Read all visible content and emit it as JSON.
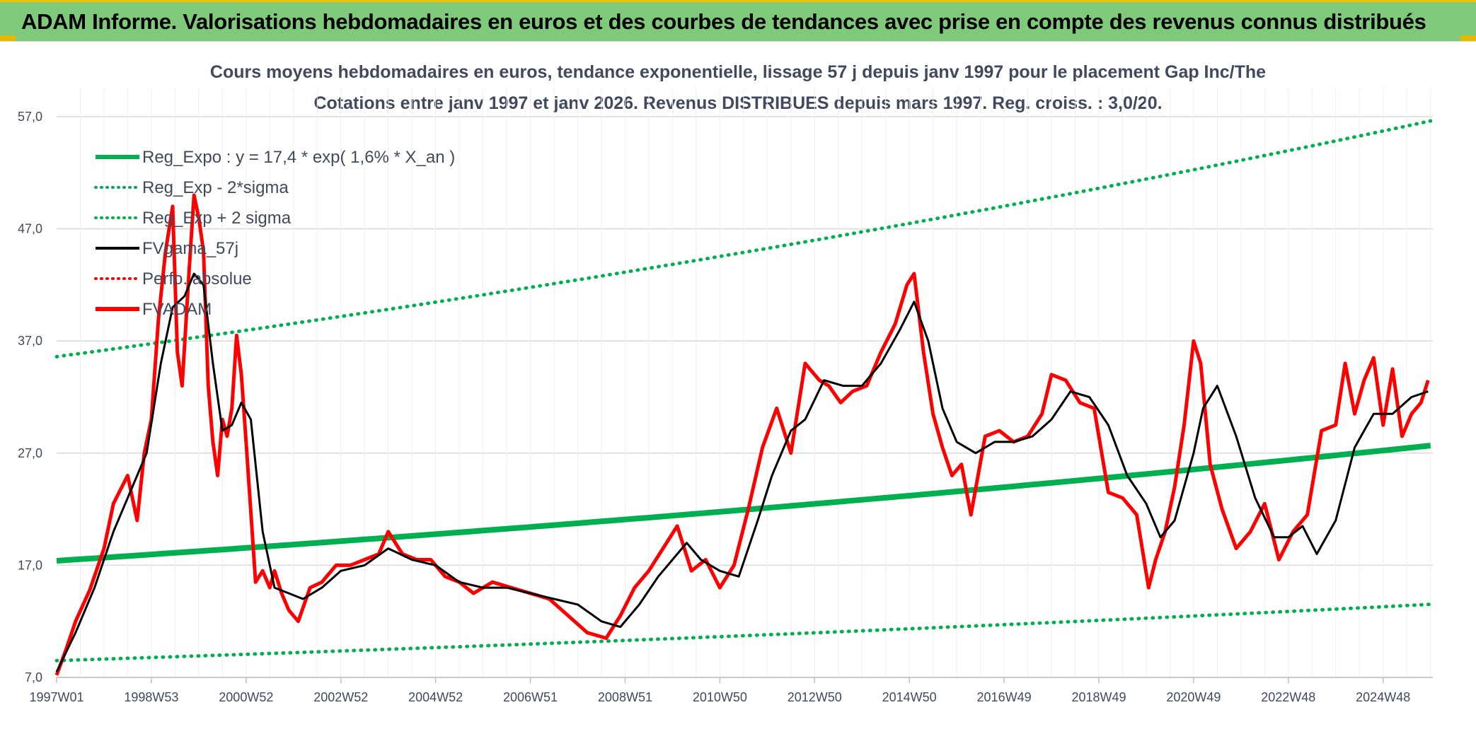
{
  "banner": {
    "title": "ADAM Informe. Valorisations hebdomadaires en euros et des courbes de tendances avec prise en compte des revenus connus distribués"
  },
  "colors": {
    "banner_bg": "#7fc97a",
    "trend": "#00b050",
    "smooth": "#000000",
    "price": "#ff0000",
    "grid": "#d9d9d9",
    "text": "#404a5c"
  },
  "chart_data": {
    "type": "line",
    "title": "Cours moyens hebdomadaires en euros, tendance exponentielle, lissage 57 j depuis janv 1997 pour le placement Gap Inc/The",
    "subtitle": "Cotations entre janv 1997 et janv 2026. Revenus DISTRIBUES depuis mars 1997. Reg. croiss. : 3,0/20.",
    "xlabel": "",
    "ylabel": "",
    "ylim": [
      7,
      57
    ],
    "x_range": [
      1997.0,
      2026.05
    ],
    "y_ticks": [
      "7,0",
      "17,0",
      "27,0",
      "37,0",
      "47,0",
      "57,0"
    ],
    "y_tick_values": [
      7,
      17,
      27,
      37,
      47,
      57
    ],
    "x_ticks": [
      "1997W01",
      "1998W53",
      "2000W52",
      "2002W52",
      "2004W52",
      "2006W51",
      "2008W51",
      "2010W50",
      "2012W50",
      "2014W50",
      "2016W49",
      "2018W49",
      "2020W49",
      "2022W48",
      "2024W48"
    ],
    "x_tick_values": [
      1997.0,
      1999.0,
      2001.0,
      2003.0,
      2005.0,
      2007.0,
      2009.0,
      2011.0,
      2013.0,
      2015.0,
      2017.0,
      2019.0,
      2021.0,
      2023.0,
      2025.0
    ],
    "grid": true,
    "legend_position": "top-left",
    "legend": [
      {
        "label": "Reg_Expo : y = 17,4 * exp( 1,6% *  X_an )",
        "style": "solid-thick",
        "color": "#00b050"
      },
      {
        "label": "Reg_Exp - 2*sigma",
        "style": "dotted",
        "color": "#00b050"
      },
      {
        "label": "Reg_Exp + 2 sigma",
        "style": "dotted",
        "color": "#00b050"
      },
      {
        "label": "FVgama_57j",
        "style": "solid",
        "color": "#000000"
      },
      {
        "label": "Perfo. absolue",
        "style": "dotted",
        "color": "#ff0000"
      },
      {
        "label": "FVADAM",
        "style": "solid-thick",
        "color": "#ff0000"
      }
    ],
    "regression": {
      "a": 17.4,
      "rate": 0.016,
      "start_year": 1997.0
    },
    "series": [
      {
        "name": "Reg_Expo",
        "x": [
          1997.0,
          2026.05
        ],
        "y": [
          17.4,
          27.7
        ]
      },
      {
        "name": "Reg_Exp + 2 sigma",
        "x": [
          1997.0,
          2026.05
        ],
        "y": [
          35.6,
          57.0
        ]
      },
      {
        "name": "Reg_Exp - 2*sigma",
        "x": [
          1997.0,
          2026.05
        ],
        "y": [
          8.5,
          13.5
        ]
      },
      {
        "name": "FVADAM",
        "x": [
          1997.0,
          1997.2,
          1997.4,
          1997.7,
          1998.0,
          1998.2,
          1998.5,
          1998.7,
          1998.85,
          1999.0,
          1999.15,
          1999.3,
          1999.45,
          1999.55,
          1999.65,
          1999.8,
          1999.9,
          2000.0,
          2000.1,
          2000.2,
          2000.3,
          2000.4,
          2000.5,
          2000.6,
          2000.7,
          2000.8,
          2000.9,
          2001.0,
          2001.2,
          2001.35,
          2001.5,
          2001.6,
          2001.75,
          2001.9,
          2002.1,
          2002.35,
          2002.6,
          2002.9,
          2003.2,
          2003.5,
          2003.8,
          2004.0,
          2004.3,
          2004.6,
          2004.9,
          2005.2,
          2005.5,
          2005.8,
          2006.2,
          2006.6,
          2007.0,
          2007.4,
          2007.8,
          2008.2,
          2008.6,
          2008.9,
          2009.2,
          2009.5,
          2009.8,
          2010.1,
          2010.4,
          2010.7,
          2011.0,
          2011.3,
          2011.6,
          2011.9,
          2012.2,
          2012.5,
          2012.8,
          2013.1,
          2013.3,
          2013.55,
          2013.8,
          2014.1,
          2014.4,
          2014.7,
          2014.95,
          2015.1,
          2015.3,
          2015.5,
          2015.7,
          2015.9,
          2016.1,
          2016.3,
          2016.6,
          2016.9,
          2017.2,
          2017.5,
          2017.8,
          2018.0,
          2018.3,
          2018.6,
          2018.9,
          2019.2,
          2019.5,
          2019.8,
          2020.05,
          2020.2,
          2020.4,
          2020.6,
          2020.8,
          2021.0,
          2021.15,
          2021.35,
          2021.6,
          2021.9,
          2022.2,
          2022.5,
          2022.8,
          2023.1,
          2023.4,
          2023.7,
          2024.0,
          2024.2,
          2024.4,
          2024.6,
          2024.8,
          2025.0,
          2025.2,
          2025.4,
          2025.6,
          2025.8,
          2025.95
        ],
        "y": [
          7.2,
          9.5,
          12.0,
          14.8,
          18.5,
          22.5,
          25.0,
          21.0,
          27.0,
          30.0,
          39.0,
          45.0,
          49.0,
          36.0,
          33.0,
          43.5,
          50.0,
          48.0,
          45.0,
          33.0,
          28.0,
          25.0,
          30.0,
          28.5,
          31.0,
          37.5,
          34.0,
          28.0,
          15.5,
          16.5,
          15.0,
          16.5,
          14.5,
          13.0,
          12.0,
          15.0,
          15.5,
          17.0,
          17.0,
          17.5,
          18.0,
          20.0,
          18.0,
          17.5,
          17.5,
          16.0,
          15.5,
          14.5,
          15.5,
          15.0,
          14.5,
          14.0,
          12.5,
          11.0,
          10.5,
          12.5,
          15.0,
          16.5,
          18.5,
          20.5,
          16.5,
          17.5,
          15.0,
          17.0,
          22.0,
          27.5,
          31.0,
          27.0,
          35.0,
          33.5,
          33.0,
          31.5,
          32.5,
          33.0,
          36.0,
          38.5,
          42.0,
          43.0,
          36.0,
          30.5,
          27.5,
          25.0,
          26.0,
          21.5,
          28.5,
          29.0,
          28.0,
          28.5,
          30.5,
          34.0,
          33.5,
          31.5,
          31.0,
          23.5,
          23.0,
          21.5,
          15.0,
          17.5,
          20.0,
          24.0,
          29.5,
          37.0,
          35.0,
          26.0,
          22.0,
          18.5,
          20.0,
          22.5,
          17.5,
          20.0,
          21.5,
          29.0,
          29.5,
          35.0,
          30.5,
          33.5,
          35.5,
          29.5,
          34.5,
          28.5,
          30.5,
          31.5,
          33.5
        ]
      },
      {
        "name": "FVgama_57j",
        "x": [
          1997.0,
          1997.4,
          1997.8,
          1998.2,
          1998.6,
          1998.9,
          1999.2,
          1999.45,
          1999.7,
          1999.9,
          2000.1,
          2000.3,
          2000.5,
          2000.7,
          2000.9,
          2001.1,
          2001.35,
          2001.6,
          2001.9,
          2002.2,
          2002.6,
          2003.0,
          2003.5,
          2004.0,
          2004.5,
          2005.0,
          2005.5,
          2006.0,
          2006.5,
          2007.0,
          2007.5,
          2008.0,
          2008.5,
          2008.9,
          2009.3,
          2009.7,
          2010.0,
          2010.3,
          2010.6,
          2011.0,
          2011.4,
          2011.8,
          2012.1,
          2012.5,
          2012.8,
          2013.2,
          2013.6,
          2014.0,
          2014.4,
          2014.8,
          2015.1,
          2015.4,
          2015.7,
          2016.0,
          2016.4,
          2016.8,
          2017.2,
          2017.6,
          2018.0,
          2018.4,
          2018.8,
          2019.2,
          2019.6,
          2020.0,
          2020.3,
          2020.6,
          2021.0,
          2021.2,
          2021.5,
          2021.9,
          2022.3,
          2022.7,
          2023.0,
          2023.3,
          2023.6,
          2024.0,
          2024.4,
          2024.8,
          2025.2,
          2025.6,
          2025.95
        ],
        "y": [
          7.5,
          11.0,
          15.0,
          20.0,
          24.0,
          27.0,
          35.0,
          40.0,
          41.0,
          43.0,
          42.0,
          35.0,
          29.0,
          29.5,
          31.5,
          30.0,
          20.0,
          15.0,
          14.5,
          14.0,
          15.0,
          16.5,
          17.0,
          18.5,
          17.5,
          17.0,
          15.5,
          15.0,
          15.0,
          14.5,
          14.0,
          13.5,
          12.0,
          11.5,
          13.5,
          16.0,
          17.5,
          19.0,
          17.5,
          16.5,
          16.0,
          21.0,
          25.0,
          29.0,
          30.0,
          33.5,
          33.0,
          33.0,
          35.0,
          38.0,
          40.5,
          37.0,
          31.0,
          28.0,
          27.0,
          28.0,
          28.0,
          28.5,
          30.0,
          32.5,
          32.0,
          29.5,
          25.0,
          22.5,
          19.5,
          21.0,
          27.0,
          31.0,
          33.0,
          28.5,
          23.0,
          19.5,
          19.5,
          20.5,
          18.0,
          21.0,
          27.5,
          30.5,
          30.5,
          32.0,
          32.5
        ]
      }
    ]
  }
}
